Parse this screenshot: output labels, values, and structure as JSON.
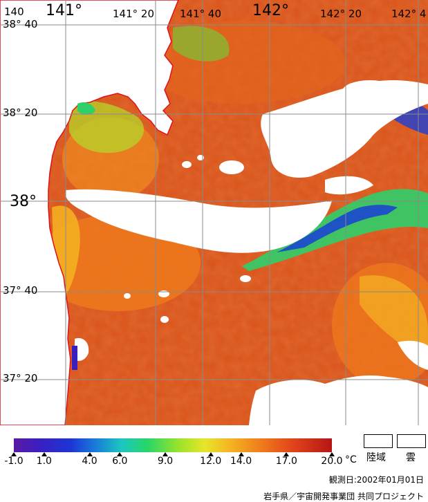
{
  "map": {
    "lon_labels_top": [
      "140",
      "141°",
      "141° 20",
      "141° 40",
      "142°",
      "142° 20",
      "142° 4"
    ],
    "lat_labels": [
      "38° 40",
      "38° 20",
      "38°",
      "37° 40",
      "37° 20"
    ],
    "colors": {
      "land": "#ffffff",
      "cloud": "#ffffff",
      "coastline": "#e0101a",
      "grid": "#8a8a8a",
      "sea_warm": "#d9531a",
      "sea_mid": "#ef7a1c",
      "sea_cool": "#f5b422",
      "sea_green": "#6ad63a",
      "sea_blue": "#1a3fd6"
    }
  },
  "colorbar": {
    "ticks": [
      "-1.0",
      "1.0",
      "4.0",
      "6.0",
      "9.0",
      "12.0",
      "14.0",
      "17.0",
      "20.0"
    ],
    "unit": "°C",
    "gradient_colors": [
      "#5a1aa3",
      "#1d36d6",
      "#1cc7c0",
      "#28d668",
      "#e6e62a",
      "#ef7a1c",
      "#b51616"
    ]
  },
  "legend": {
    "land_label": "陸域",
    "cloud_label": "雲"
  },
  "observation_date": "観測日:2002年01月01日",
  "credit": "岩手県／宇宙開発事業団 共同プロジェクト"
}
